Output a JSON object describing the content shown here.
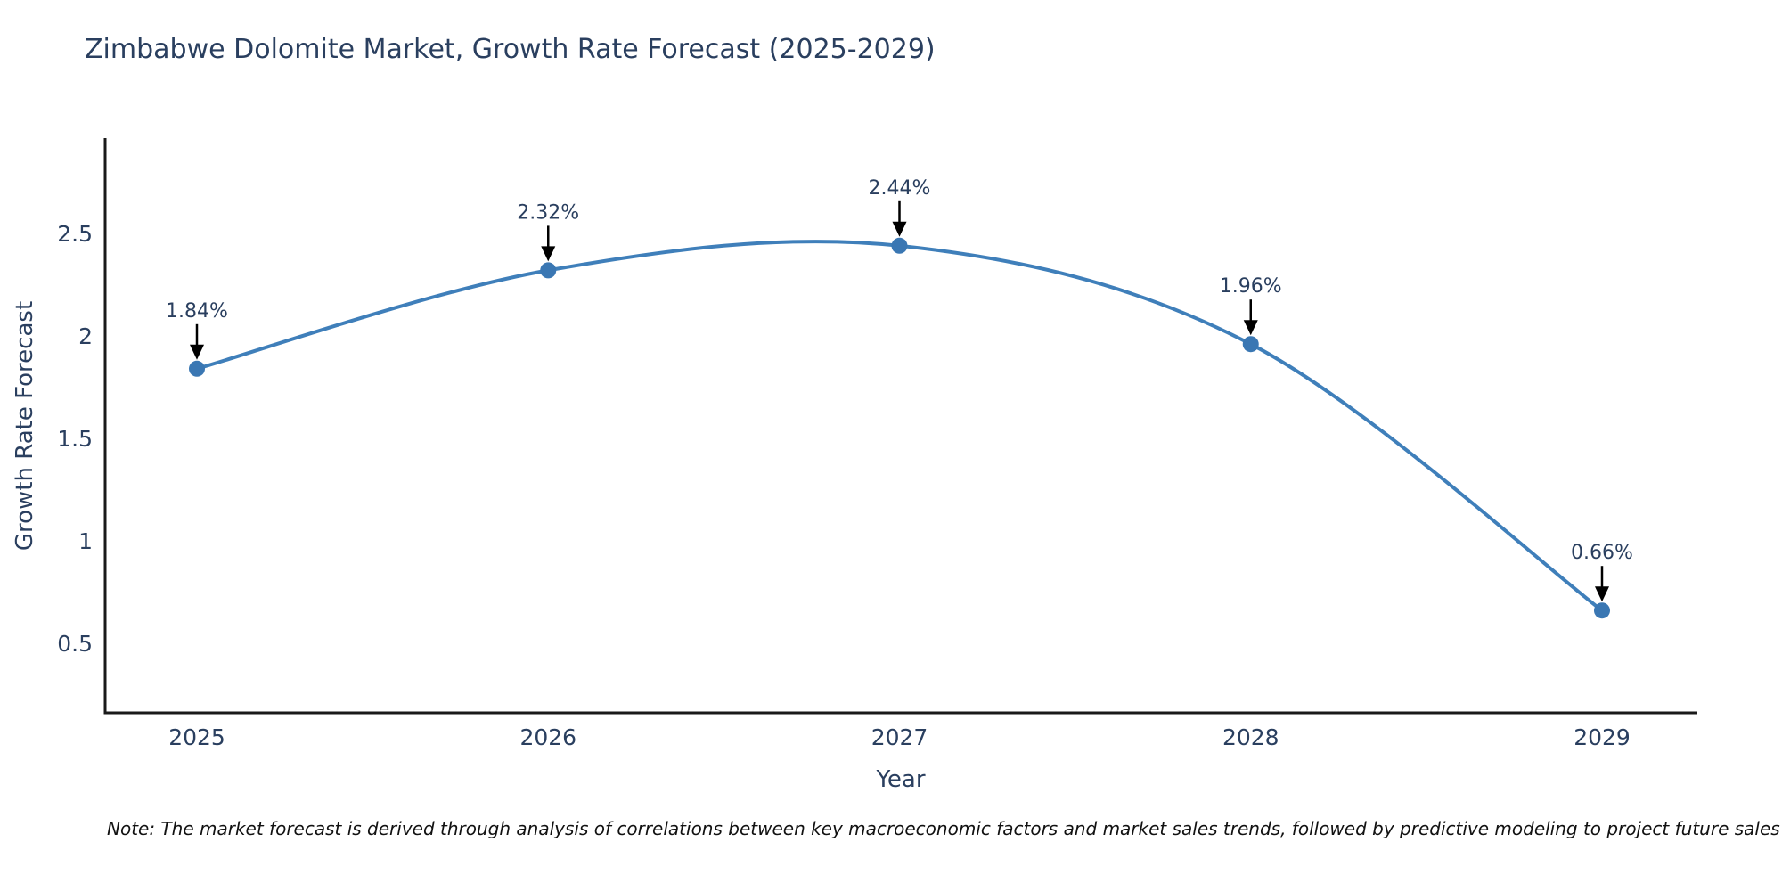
{
  "title": "Zimbabwe Dolomite Market, Growth Rate Forecast (2025-2029)",
  "note": "Note: The market forecast is derived through analysis of correlations between key macroeconomic factors and market sales trends, followed by predictive modeling to project future sales",
  "chart_data": {
    "type": "line",
    "line_shape": "spline",
    "title": "Zimbabwe Dolomite Market, Growth Rate Forecast (2025-2029)",
    "categories": [
      "2025",
      "2026",
      "2027",
      "2028",
      "2029"
    ],
    "series": [
      {
        "name": "Growth Rate Forecast",
        "values": [
          1.84,
          2.32,
          2.44,
          1.96,
          0.66
        ],
        "point_labels": [
          "1.84%",
          "2.32%",
          "2.44%",
          "1.96%",
          "0.66%"
        ]
      }
    ],
    "xlabel": "Year",
    "ylabel": "Growth Rate Forecast",
    "yticks": [
      0.5,
      1,
      1.5,
      2,
      2.5
    ],
    "ylim": [
      0.16,
      2.97
    ],
    "grid": false,
    "legend_position": "none",
    "annotations_have_arrows": true,
    "colors": {
      "line": "#3f7fba",
      "marker": "#3a77b3",
      "axis_line": "#1a1a1a",
      "tick_text": "#2a3f5f",
      "annotation_text": "#2a3f5f",
      "annotation_arrow": "#000000",
      "title_text": "#2a3f5f",
      "background": "#ffffff"
    }
  }
}
